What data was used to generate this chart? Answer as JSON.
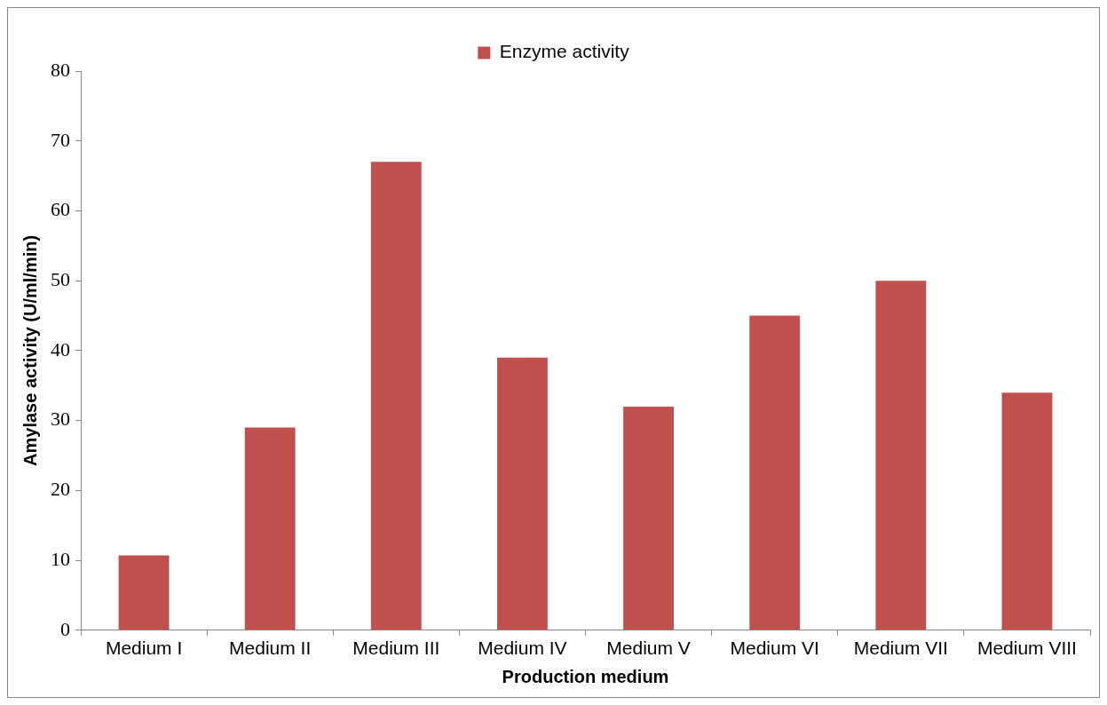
{
  "chart_data": {
    "type": "bar",
    "xlabel": "Production medium",
    "ylabel": "Amylase activity (U/ml/min)",
    "categories": [
      "Medium I",
      "Medium II",
      "Medium III",
      "Medium IV",
      "Medium V",
      "Medium VI",
      "Medium VII",
      "Medium VIII"
    ],
    "series": [
      {
        "name": "Enzyme activity",
        "color": "#c0504d",
        "values": [
          10.7,
          29,
          67,
          39,
          32,
          45,
          50,
          34
        ]
      }
    ],
    "ylim": [
      0,
      80
    ],
    "yticks": [
      0,
      10,
      20,
      30,
      40,
      50,
      60,
      70,
      80
    ],
    "legend": "top"
  }
}
